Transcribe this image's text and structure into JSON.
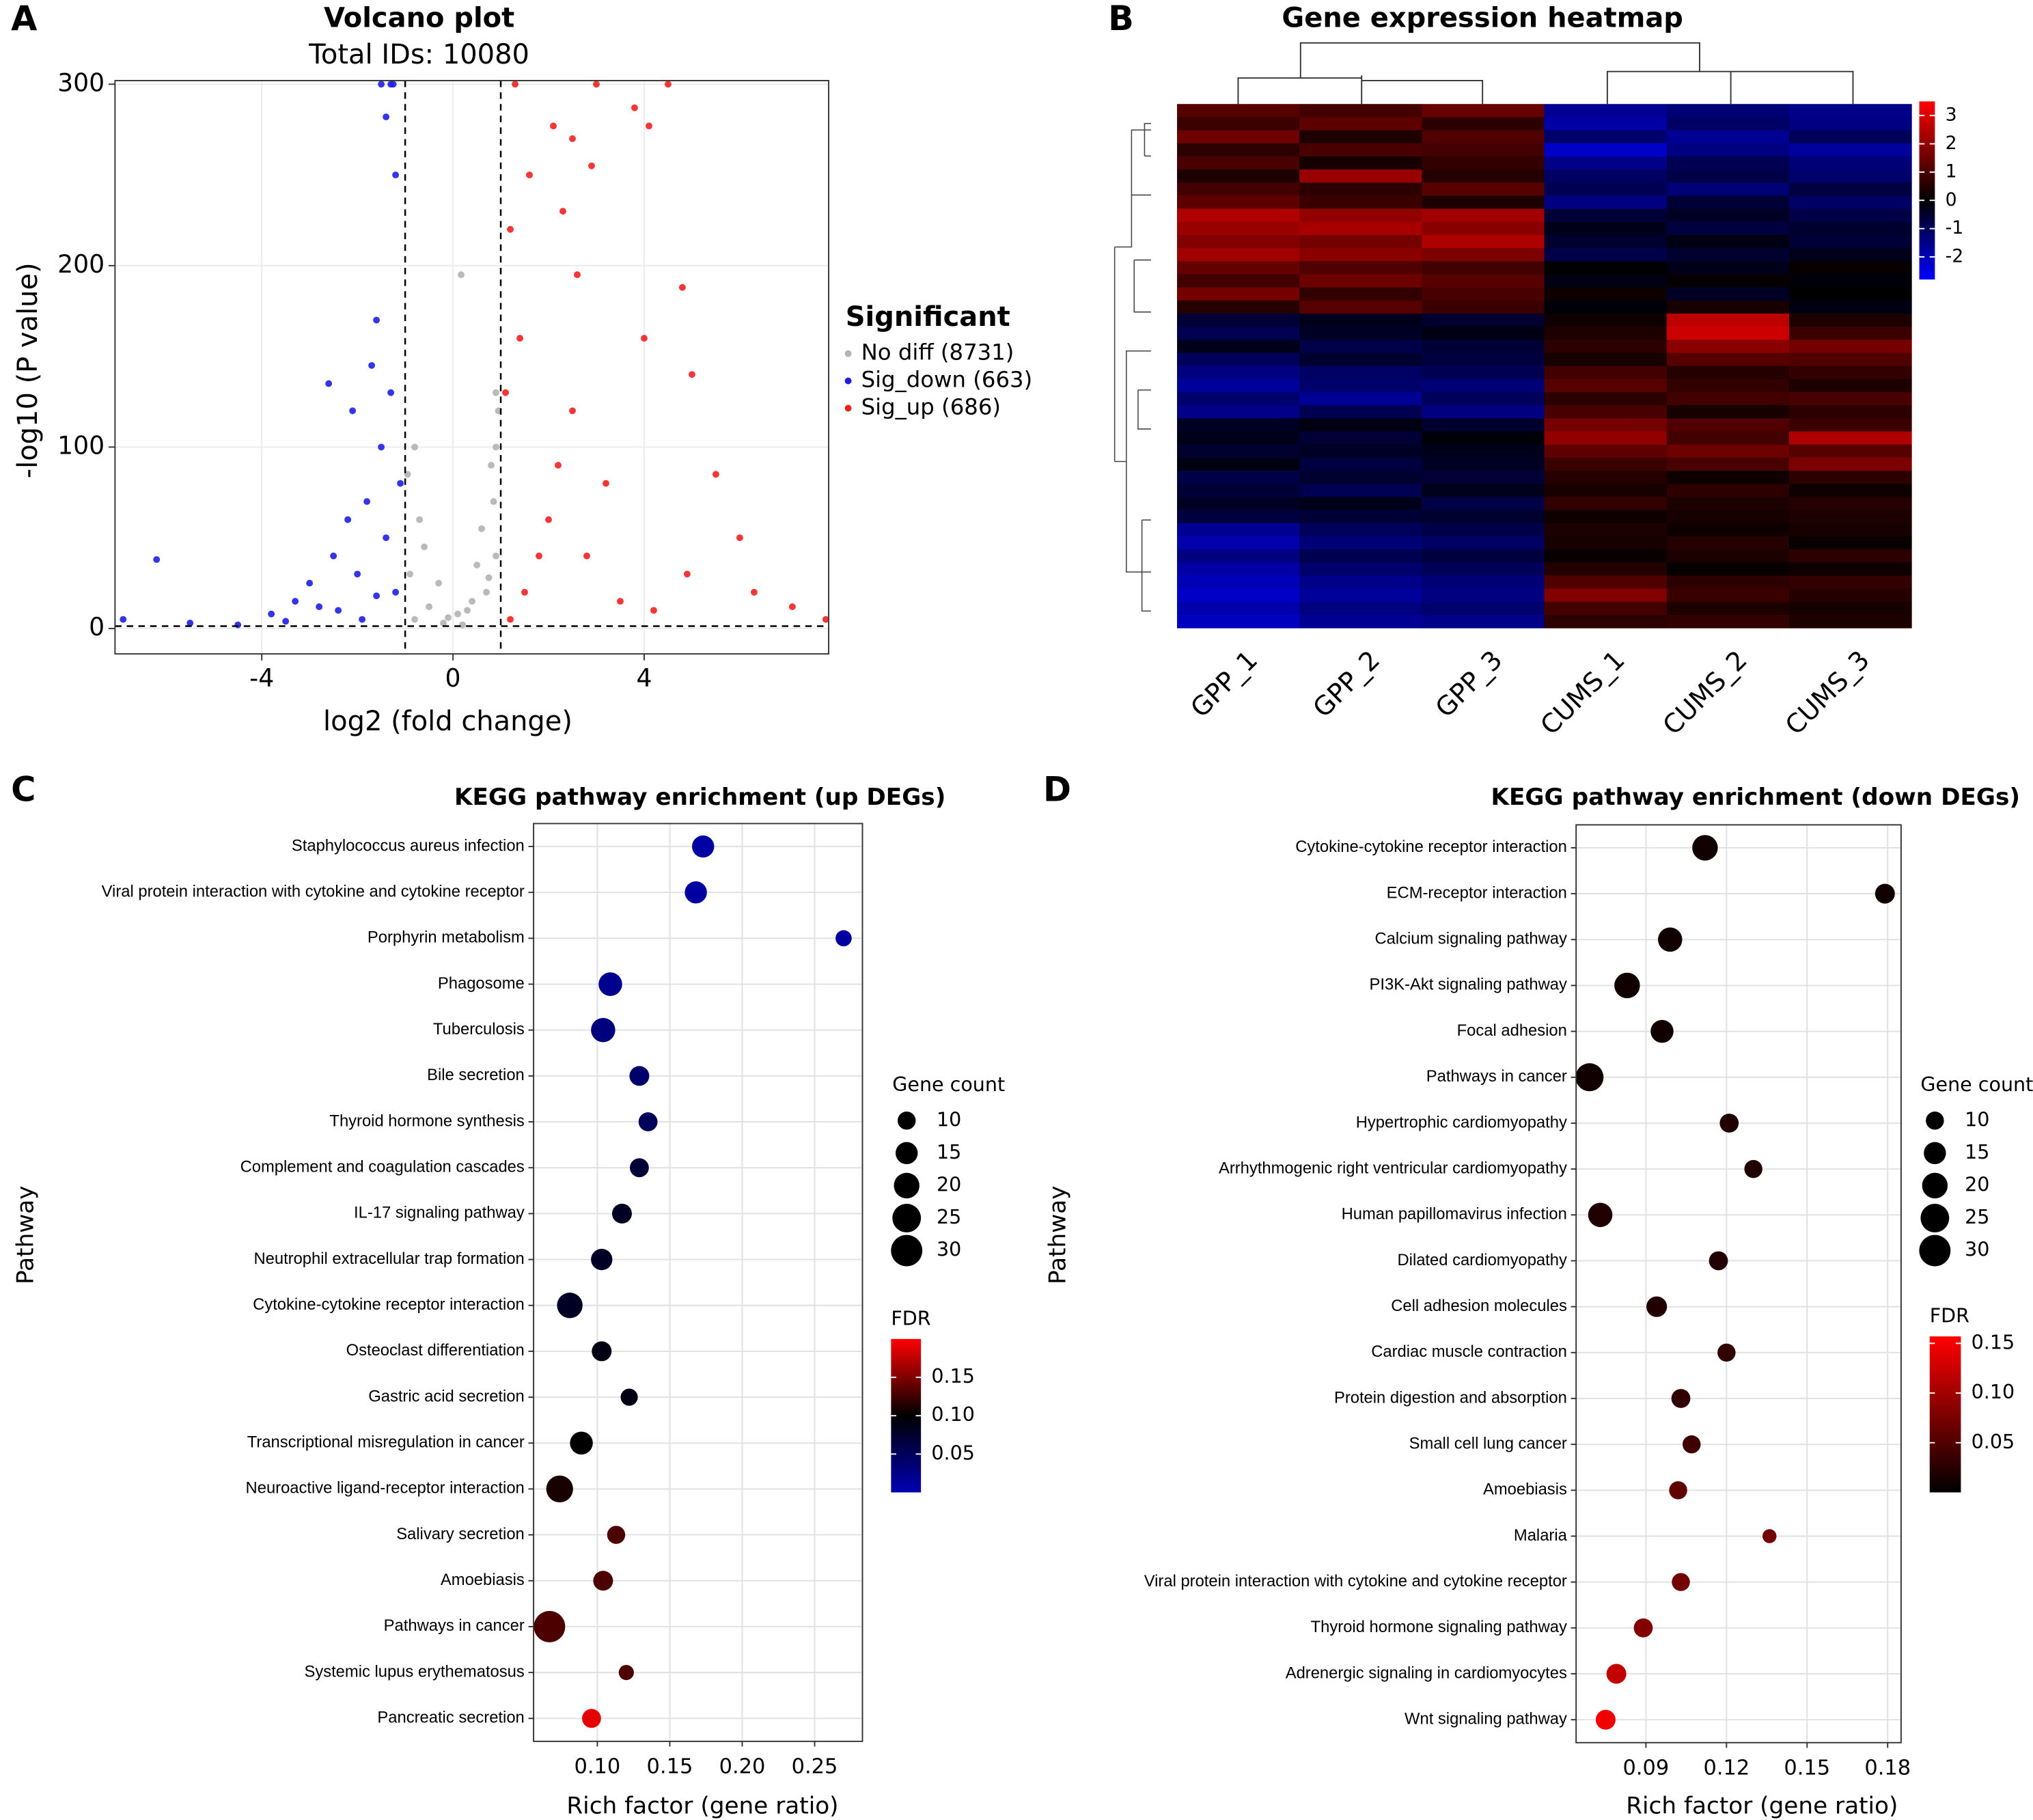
{
  "chart_data": [
    {
      "type": "volcano",
      "panel": "A",
      "title": "Volcano plot",
      "subtitle": "Total IDs: 10080",
      "x_label": "log2 (fold change)",
      "y_label": "-log10 (P value)",
      "xlim": [
        -7.07,
        7.86
      ],
      "ylim": [
        -14,
        302
      ],
      "xticks": [
        -4,
        0,
        4
      ],
      "yticks": [
        0,
        100,
        200,
        300
      ],
      "grid": true,
      "cutoffs": {
        "x": [
          -1,
          1
        ],
        "y": [
          1.3
        ]
      },
      "legend_title": "Significant",
      "series": [
        {
          "name": "No diff (8731)",
          "color": "#b3b3b3",
          "x": [
            -0.8,
            -0.5,
            -0.2,
            0.1,
            0.4,
            0.7,
            0.9,
            -0.9,
            -0.7,
            0.6,
            0.8,
            0.9,
            -0.8,
            0.2,
            -0.3,
            0.5,
            -0.6,
            0.85,
            0.95,
            0.17,
            -0.95,
            0.3,
            -0.1,
            0.75,
            0.9
          ],
          "values": [
            5,
            12,
            3,
            8,
            15,
            20,
            40,
            30,
            60,
            55,
            90,
            130,
            100,
            2,
            25,
            35,
            45,
            70,
            120,
            195,
            85,
            10,
            6,
            28,
            100
          ]
        },
        {
          "name": "Sig_down (663)",
          "color": "#1f1fe6",
          "x": [
            -6.2,
            -6.9,
            -5.5,
            -4.5,
            -3.8,
            -3.3,
            -3,
            -2.5,
            -2.2,
            -2,
            -1.8,
            -1.5,
            -1.3,
            -1.7,
            -1.6,
            -1.4,
            -1.2,
            -1.3,
            -1.5,
            -2.4,
            -1.9,
            -1.2,
            -2.6,
            -1.1,
            -1.4,
            -3.5,
            -2.8,
            -1.6,
            -2.1,
            -1.25
          ],
          "values": [
            38,
            5,
            3,
            2,
            8,
            15,
            25,
            40,
            60,
            30,
            70,
            100,
            130,
            145,
            170,
            282,
            250,
            300,
            300,
            10,
            5,
            20,
            135,
            80,
            50,
            4,
            12,
            18,
            120,
            300
          ]
        },
        {
          "name": "Sig_up (686)",
          "color": "#f22020",
          "x": [
            1.2,
            1.5,
            1.8,
            2,
            2.2,
            2.5,
            1.4,
            1.2,
            1.6,
            2.3,
            2.5,
            3,
            3.8,
            4.5,
            4.8,
            4,
            5,
            5.5,
            6,
            6.3,
            7.1,
            7.8,
            3.2,
            2.8,
            3.5,
            4.2,
            1.3,
            2.1,
            2.9,
            4.1,
            4.9,
            2.6,
            1.1
          ],
          "values": [
            5,
            20,
            40,
            60,
            90,
            120,
            160,
            220,
            250,
            230,
            270,
            300,
            287,
            300,
            188,
            160,
            140,
            85,
            50,
            20,
            12,
            5,
            80,
            40,
            15,
            10,
            300,
            277,
            255,
            277,
            30,
            195,
            130
          ]
        }
      ]
    },
    {
      "type": "heatmap",
      "panel": "B",
      "title": "Gene expression heatmap",
      "categories": [
        "GPP_1",
        "GPP_2",
        "GPP_3",
        "CUMS_1",
        "CUMS_2",
        "CUMS_3"
      ],
      "colorscale": {
        "values": [
          -2.8,
          0,
          3.5
        ],
        "colors": [
          "#0000ff",
          "#000000",
          "#ff0000"
        ]
      },
      "color_ticks": [
        3,
        2,
        1,
        0,
        -1,
        -2
      ],
      "values": [
        [
          1.2,
          0.9,
          1.4,
          -1.6,
          -1.3,
          -1.5
        ],
        [
          0.8,
          1.3,
          0.6,
          -1.8,
          -1.1,
          -1.4
        ],
        [
          1.5,
          0.4,
          1.1,
          -1.2,
          -1.6,
          -1.0
        ],
        [
          0.6,
          1.0,
          0.9,
          -2.2,
          -1.4,
          -1.7
        ],
        [
          1.0,
          0.3,
          0.7,
          -1.5,
          -0.9,
          -1.3
        ],
        [
          0.4,
          2.1,
          0.5,
          -1.1,
          -0.8,
          -1.2
        ],
        [
          0.9,
          0.6,
          1.2,
          -0.9,
          -1.3,
          -0.7
        ],
        [
          1.3,
          0.8,
          0.4,
          -1.4,
          -0.6,
          -1.1
        ],
        [
          2.4,
          2.0,
          2.2,
          -0.6,
          -0.4,
          -0.8
        ],
        [
          2.1,
          2.3,
          1.9,
          -0.3,
          -0.7,
          -0.5
        ],
        [
          1.8,
          1.6,
          2.4,
          -0.5,
          -0.2,
          -0.6
        ],
        [
          2.2,
          1.9,
          1.7,
          -0.8,
          -0.5,
          -0.3
        ],
        [
          1.4,
          1.1,
          0.9,
          0.0,
          -0.3,
          0.1
        ],
        [
          0.9,
          1.5,
          1.2,
          -0.2,
          0.1,
          -0.1
        ],
        [
          1.6,
          0.7,
          1.0,
          0.2,
          -0.4,
          0.0
        ],
        [
          0.5,
          1.2,
          0.8,
          -0.1,
          0.3,
          -0.2
        ],
        [
          -0.6,
          -0.3,
          -0.5,
          0.2,
          2.6,
          0.4
        ],
        [
          -0.9,
          -0.4,
          -0.2,
          0.4,
          2.8,
          0.8
        ],
        [
          -0.3,
          -0.8,
          -0.6,
          0.6,
          1.9,
          1.6
        ],
        [
          -1.0,
          -0.5,
          -0.7,
          0.3,
          1.2,
          1.1
        ],
        [
          -1.4,
          -1.1,
          -0.9,
          0.9,
          0.5,
          0.7
        ],
        [
          -1.7,
          -1.2,
          -1.3,
          1.2,
          0.7,
          0.4
        ],
        [
          -1.2,
          -1.6,
          -1.0,
          0.6,
          0.9,
          1.0
        ],
        [
          -1.5,
          -0.9,
          -1.4,
          1.0,
          0.3,
          0.6
        ],
        [
          -0.4,
          -0.2,
          -0.5,
          1.6,
          1.1,
          0.8
        ],
        [
          -0.3,
          -0.6,
          -0.1,
          2.0,
          0.9,
          2.4
        ],
        [
          -0.5,
          -0.4,
          -0.3,
          1.3,
          1.5,
          1.2
        ],
        [
          -0.2,
          -0.7,
          -0.4,
          0.8,
          1.0,
          1.7
        ],
        [
          -0.8,
          -0.5,
          -0.6,
          0.5,
          0.2,
          0.6
        ],
        [
          -0.6,
          -0.9,
          -0.3,
          0.3,
          0.6,
          0.2
        ],
        [
          -0.4,
          -0.3,
          -0.8,
          0.7,
          0.4,
          0.5
        ],
        [
          -0.7,
          -0.6,
          -0.5,
          0.2,
          0.3,
          0.4
        ],
        [
          -1.6,
          -1.0,
          -0.8,
          0.4,
          0.2,
          0.3
        ],
        [
          -1.9,
          -1.3,
          -1.1,
          0.3,
          0.5,
          0.1
        ],
        [
          -1.4,
          -0.9,
          -0.7,
          0.1,
          0.4,
          0.6
        ],
        [
          -1.8,
          -1.2,
          -1.0,
          0.5,
          0.1,
          0.2
        ],
        [
          -2.0,
          -1.5,
          -1.3,
          1.1,
          0.6,
          0.7
        ],
        [
          -2.2,
          -1.7,
          -1.4,
          1.8,
          0.8,
          0.5
        ],
        [
          -1.9,
          -1.4,
          -1.2,
          0.9,
          0.4,
          0.3
        ],
        [
          -2.1,
          -1.6,
          -1.5,
          0.6,
          0.7,
          0.4
        ]
      ]
    },
    {
      "type": "bubble",
      "panel": "C",
      "title": "KEGG pathway enrichment (up DEGs)",
      "x_label": "Rich factor (gene ratio)",
      "y_label": "Pathway",
      "categories": [
        "Staphylococcus aureus infection",
        "Viral protein interaction with cytokine and cytokine receptor",
        "Porphyrin metabolism",
        "Phagosome",
        "Tuberculosis",
        "Bile secretion",
        "Thyroid hormone synthesis",
        "Complement and coagulation cascades",
        "IL-17 signaling pathway",
        "Neutrophil extracellular trap formation",
        "Cytokine-cytokine receptor interaction",
        "Osteoclast differentiation",
        "Gastric acid secretion",
        "Transcriptional misregulation in cancer",
        "Neuroactive ligand-receptor interaction",
        "Salivary secretion",
        "Amoebiasis",
        "Pathways in cancer",
        "Systemic lupus erythematosus",
        "Pancreatic secretion"
      ],
      "values": [
        0.173,
        0.168,
        0.27,
        0.109,
        0.104,
        0.129,
        0.135,
        0.129,
        0.117,
        0.103,
        0.081,
        0.103,
        0.122,
        0.089,
        0.074,
        0.113,
        0.104,
        0.067,
        0.12,
        0.096
      ],
      "gene_count": [
        15,
        15,
        8,
        17,
        18,
        12,
        11,
        11,
        12,
        14,
        20,
        12,
        9,
        16,
        22,
        10,
        12,
        30,
        7,
        11
      ],
      "fdr": [
        0.01,
        0.01,
        0.01,
        0.02,
        0.03,
        0.04,
        0.05,
        0.07,
        0.08,
        0.08,
        0.08,
        0.09,
        0.09,
        0.1,
        0.11,
        0.13,
        0.13,
        0.13,
        0.13,
        0.19
      ],
      "xlim": [
        0.056,
        0.283
      ],
      "xticks": [
        {
          "value": 0.1,
          "label": "0.10"
        },
        0.15,
        {
          "value": 0.2,
          "label": "0.20"
        },
        0.25
      ],
      "grid": true,
      "size_legend_title": "Gene count",
      "size_legend": [
        10,
        15,
        20,
        25,
        30
      ],
      "color_legend_title": "FDR",
      "colorscale": {
        "values": [
          0,
          0.1,
          0.2
        ],
        "colors": [
          "#0000b4",
          "#000000",
          "#ff0000"
        ]
      },
      "color_ticks": [
        0.15,
        {
          "value": 0.1,
          "label": "0.10"
        },
        0.05
      ]
    },
    {
      "type": "bubble",
      "panel": "D",
      "title": "KEGG pathway enrichment (down DEGs)",
      "x_label": "Rich factor (gene ratio)",
      "y_label": "Pathway",
      "categories": [
        "Cytokine-cytokine receptor interaction",
        "ECM-receptor interaction",
        "Calcium signaling pathway",
        "PI3K-Akt signaling pathway",
        "Focal adhesion",
        "Pathways in cancer",
        "Hypertrophic cardiomyopathy",
        "Arrhythmogenic right ventricular cardiomyopathy",
        "Human papillomavirus infection",
        "Dilated cardiomyopathy",
        "Cell adhesion molecules",
        "Cardiac muscle contraction",
        "Protein digestion and absorption",
        "Small cell lung cancer",
        "Amoebiasis",
        "Malaria",
        "Viral protein interaction with cytokine and cytokine receptor",
        "Thyroid hormone signaling pathway",
        "Adrenergic signaling in cardiomyocytes",
        "Wnt signaling pathway"
      ],
      "values": [
        0.112,
        0.179,
        0.099,
        0.083,
        0.096,
        0.069,
        0.121,
        0.13,
        0.073,
        0.117,
        0.094,
        0.12,
        0.103,
        0.107,
        0.102,
        0.136,
        0.103,
        0.089,
        0.079,
        0.075
      ],
      "gene_count": [
        20,
        12,
        18,
        20,
        16,
        24,
        11,
        10,
        18,
        11,
        13,
        10,
        11,
        10,
        10,
        6,
        10,
        11,
        12,
        12
      ],
      "fdr": [
        0.01,
        0.01,
        0.01,
        0.01,
        0.01,
        0.01,
        0.02,
        0.02,
        0.02,
        0.02,
        0.02,
        0.03,
        0.03,
        0.04,
        0.06,
        0.07,
        0.07,
        0.08,
        0.12,
        0.15
      ],
      "xlim": [
        0.064,
        0.185
      ],
      "xticks": [
        0.09,
        0.12,
        0.15,
        0.18
      ],
      "grid": true,
      "size_legend_title": "Gene count",
      "size_legend": [
        10,
        15,
        20,
        25,
        30
      ],
      "color_legend_title": "FDR",
      "colorscale": {
        "values": [
          0,
          0.157
        ],
        "colors": [
          "#000000",
          "#ff0000"
        ]
      },
      "color_ticks": [
        0.15,
        {
          "value": 0.1,
          "label": "0.10"
        },
        0.05
      ]
    }
  ]
}
